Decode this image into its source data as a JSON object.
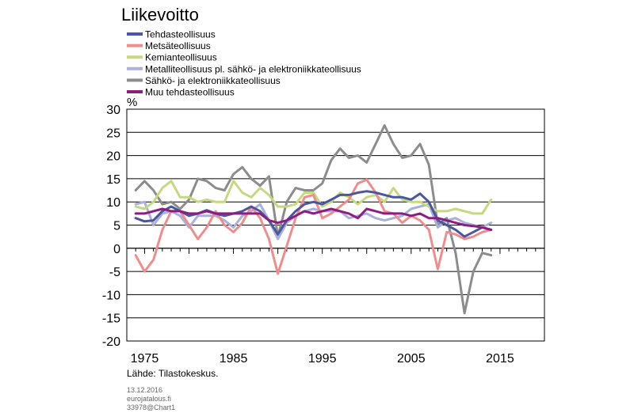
{
  "chart_data": {
    "type": "line",
    "title": "Liikevoitto",
    "ylabel": "%",
    "xlabel": "",
    "xlim": [
      1973,
      2020
    ],
    "ylim": [
      -20,
      30
    ],
    "x_ticks": [
      1975,
      1985,
      1995,
      2005,
      2015
    ],
    "y_ticks": [
      30,
      25,
      20,
      15,
      10,
      5,
      0,
      -5,
      -10,
      -15,
      -20
    ],
    "grid": "horizontal",
    "legend_position": "top",
    "source": "Lähde: Tilastokeskus.",
    "x": [
      1974,
      1975,
      1976,
      1977,
      1978,
      1979,
      1980,
      1981,
      1982,
      1983,
      1984,
      1985,
      1986,
      1987,
      1988,
      1989,
      1990,
      1991,
      1992,
      1993,
      1994,
      1995,
      1996,
      1997,
      1998,
      1999,
      2000,
      2001,
      2002,
      2003,
      2004,
      2005,
      2006,
      2007,
      2008,
      2009,
      2010,
      2011,
      2012,
      2013,
      2014
    ],
    "series": [
      {
        "name": "Tehdasteollisuus",
        "color": "#4b56a0",
        "values": [
          6.5,
          5.8,
          6.0,
          8.0,
          9.0,
          8.0,
          7.0,
          7.5,
          8.2,
          7.5,
          7.0,
          7.5,
          8.0,
          9.0,
          8.0,
          6.0,
          3.0,
          6.0,
          8.0,
          9.5,
          10.0,
          9.5,
          10.5,
          11.5,
          11.5,
          12.0,
          12.3,
          12.0,
          11.5,
          11.0,
          11.0,
          10.5,
          11.8,
          10.0,
          6.0,
          5.0,
          4.0,
          2.5,
          3.5,
          4.5,
          4.0
        ]
      },
      {
        "name": "Metsäteollisuus",
        "color": "#f08c8c",
        "values": [
          -1.5,
          -5.0,
          -2.5,
          4.0,
          8.0,
          8.0,
          5.0,
          2.0,
          4.5,
          8.0,
          5.0,
          3.5,
          5.5,
          9.0,
          6.5,
          2.0,
          -5.5,
          0.5,
          6.5,
          11.0,
          11.5,
          6.5,
          7.5,
          9.0,
          10.5,
          14.0,
          14.8,
          12.0,
          8.0,
          7.5,
          5.5,
          7.0,
          6.0,
          4.0,
          -4.5,
          3.5,
          3.0,
          2.0,
          2.5,
          3.5,
          4.0
        ]
      },
      {
        "name": "Kemianteollisuus",
        "color": "#c5d97f",
        "values": [
          9.0,
          8.5,
          10.0,
          13.0,
          14.5,
          11.0,
          11.0,
          10.0,
          10.5,
          10.0,
          10.0,
          14.5,
          12.0,
          11.0,
          13.0,
          11.5,
          9.0,
          9.0,
          9.5,
          12.0,
          12.0,
          9.0,
          10.0,
          12.0,
          11.0,
          9.5,
          11.0,
          11.5,
          10.0,
          13.0,
          10.5,
          10.0,
          10.0,
          9.0,
          8.0,
          8.0,
          8.5,
          8.0,
          7.5,
          7.5,
          10.5
        ]
      },
      {
        "name": "Metalliteollisuus pl. sähkö- ja elektroniikkateollisuus",
        "color": "#aab0dd",
        "values": [
          9.5,
          10.0,
          5.0,
          7.5,
          8.0,
          7.0,
          4.5,
          7.0,
          7.0,
          7.0,
          6.0,
          4.5,
          7.0,
          8.0,
          9.5,
          6.0,
          2.0,
          5.5,
          7.0,
          8.0,
          8.5,
          8.0,
          8.0,
          8.0,
          6.5,
          7.0,
          7.5,
          6.5,
          6.0,
          6.5,
          7.0,
          8.5,
          9.0,
          9.5,
          4.5,
          6.0,
          6.5,
          5.5,
          5.0,
          4.5,
          5.5
        ]
      },
      {
        "name": "Sähkö- ja elektroniikkateollisuus",
        "color": "#8c8c8c",
        "values": [
          12.5,
          14.5,
          12.5,
          9.5,
          10.0,
          8.5,
          10.5,
          15.0,
          14.5,
          13.0,
          12.5,
          16.0,
          17.5,
          15.0,
          13.5,
          15.5,
          2.5,
          10.0,
          13.0,
          12.5,
          12.5,
          14.0,
          19.0,
          21.5,
          19.5,
          20.0,
          18.5,
          22.5,
          26.5,
          22.5,
          19.5,
          20.0,
          22.5,
          18.0,
          5.0,
          6.5,
          -1.0,
          -14.0,
          -5.0,
          -1.0,
          -1.5
        ]
      },
      {
        "name": "Muu tehdasteollisuus",
        "color": "#8b1e80",
        "values": [
          7.5,
          7.5,
          8.0,
          8.5,
          8.0,
          8.0,
          7.5,
          7.5,
          8.0,
          7.5,
          7.5,
          7.5,
          7.5,
          7.5,
          7.5,
          6.0,
          5.5,
          6.0,
          7.0,
          8.0,
          7.5,
          8.0,
          8.5,
          8.0,
          7.5,
          6.5,
          8.5,
          8.0,
          7.5,
          7.5,
          7.5,
          7.0,
          7.5,
          6.5,
          6.5,
          6.0,
          5.5,
          5.0,
          4.8,
          4.5,
          4.0
        ]
      }
    ]
  },
  "meta": {
    "date": "13.12.2016",
    "site": "eurojatalous.fi",
    "chart_id": "33978@Chart1"
  }
}
